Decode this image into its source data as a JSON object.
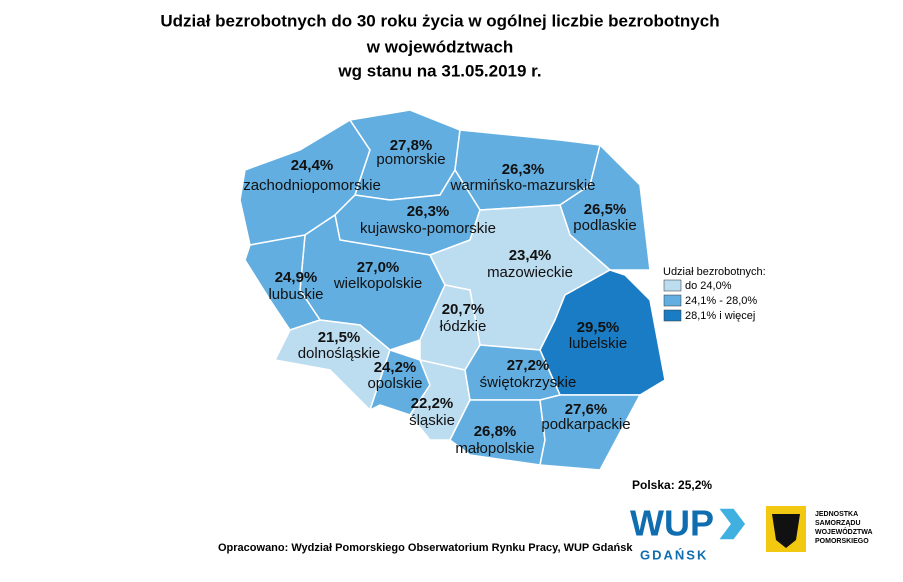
{
  "header": {
    "title_lines": [
      "Udział bezrobotnych do 30 roku życia w ogólnej liczbie bezrobotnych",
      "w województwach",
      "wg stanu na 31.05.2019 r."
    ]
  },
  "regions": [
    {
      "name": "zachodniopomorskie",
      "value": "24,4%",
      "color": "#62aee0"
    },
    {
      "name": "pomorskie",
      "value": "27,8%",
      "color": "#62aee0"
    },
    {
      "name": "warmińsko-mazurskie",
      "value": "26,3%",
      "color": "#62aee0"
    },
    {
      "name": "podlaskie",
      "value": "26,5%",
      "color": "#62aee0"
    },
    {
      "name": "kujawsko-pomorskie",
      "value": "26,3%",
      "color": "#62aee0"
    },
    {
      "name": "wielkopolskie",
      "value": "27,0%",
      "color": "#62aee0"
    },
    {
      "name": "lubuskie",
      "value": "24,9%",
      "color": "#62aee0"
    },
    {
      "name": "mazowieckie",
      "value": "23,4%",
      "color": "#bcdcf0"
    },
    {
      "name": "lubelskie",
      "value": "29,5%",
      "color": "#1a7cc4"
    },
    {
      "name": "łódzkie",
      "value": "20,7%",
      "color": "#bcdcf0"
    },
    {
      "name": "dolnośląskie",
      "value": "21,5%",
      "color": "#bcdcf0"
    },
    {
      "name": "opolskie",
      "value": "24,2%",
      "color": "#62aee0"
    },
    {
      "name": "śląskie",
      "value": "22,2%",
      "color": "#bcdcf0"
    },
    {
      "name": "świętokrzyskie",
      "value": "27,2%",
      "color": "#62aee0"
    },
    {
      "name": "małopolskie",
      "value": "26,8%",
      "color": "#62aee0"
    },
    {
      "name": "podkarpackie",
      "value": "27,6%",
      "color": "#62aee0"
    }
  ],
  "legend": {
    "title": "Udział bezrobotnych:",
    "items": [
      {
        "label": "do 24,0%",
        "color": "#bcdcf0"
      },
      {
        "label": "24,1% - 28,0%",
        "color": "#62aee0"
      },
      {
        "label": "28,1% i więcej",
        "color": "#1a7cc4"
      }
    ]
  },
  "total": "Polska: 25,2%",
  "source": "Opracowano: Wydział Pomorskiego Obserwatorium Rynku Pracy, WUP Gdańsk",
  "logo": {
    "wup": "WUP",
    "city": "GDAŃSK",
    "emblem_lines": [
      "JEDNOSTKA",
      "SAMORZĄDU",
      "WOJEWÓDZTWA",
      "POMORSKIEGO"
    ]
  }
}
